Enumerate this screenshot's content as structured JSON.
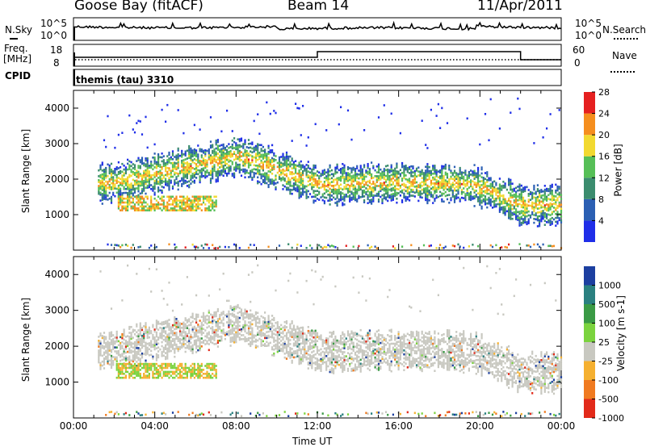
{
  "header": {
    "station": "Goose Bay (fitACF)",
    "beam": "Beam 14",
    "date": "11/Apr/2011"
  },
  "noise_panel": {
    "left_label": "N.Sky",
    "left_top": "10^5",
    "left_bottom": "10^0",
    "right_label": "N.Search",
    "right_top": "10^5",
    "right_bottom": "10^0"
  },
  "freq_panel": {
    "left_label_1": "Freq.",
    "left_label_2": "[MHz]",
    "left_top": "18",
    "left_bottom": "8",
    "right_label": "Nave",
    "right_top": "60",
    "right_bottom": "0"
  },
  "cpid": {
    "label": "CPID",
    "value": "themis (tau) 3310"
  },
  "chart_data": [
    {
      "type": "heatmap",
      "name": "power",
      "ylabel": "Slant Range [km]",
      "yticks": [
        1000,
        2000,
        3000,
        4000
      ],
      "ylim": [
        0,
        4500
      ],
      "xlim_hours": [
        0,
        24
      ],
      "colorbar_label": "Power [dB]",
      "colorbar_ticks": [
        "4",
        "8",
        "12",
        "16",
        "20",
        "24",
        "28"
      ],
      "colors": [
        "#1f2ee8",
        "#2b5fb3",
        "#3b8c6e",
        "#56bf57",
        "#f2d930",
        "#f58e1e",
        "#e52020"
      ]
    },
    {
      "type": "heatmap",
      "name": "velocity",
      "ylabel": "Slant Range [km]",
      "yticks": [
        1000,
        2000,
        3000,
        4000
      ],
      "ylim": [
        0,
        4500
      ],
      "xlim_hours": [
        0,
        24
      ],
      "colorbar_label": "Velocity [m s-1]",
      "colorbar_ticks": [
        "1000",
        "500",
        "100",
        "25",
        "-25",
        "-100",
        "-500",
        "-1000"
      ],
      "colors": [
        "#1c3fa0",
        "#2a8080",
        "#3a9a45",
        "#7bd33e",
        "#c8c8c0",
        "#f5b030",
        "#f07a20",
        "#e22a1a"
      ]
    }
  ],
  "x_axis": {
    "label": "Time UT",
    "ticks": [
      "00:00",
      "04:00",
      "08:00",
      "12:00",
      "16:00",
      "20:00",
      "00:00"
    ]
  }
}
